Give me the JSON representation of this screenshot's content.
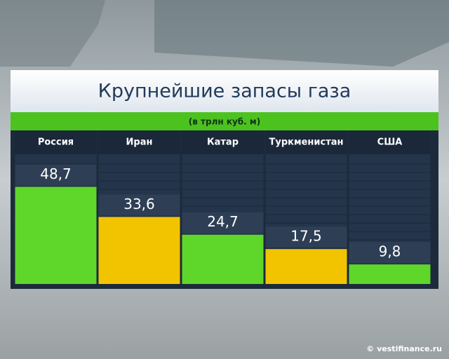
{
  "chart_data": {
    "type": "bar",
    "title": "Крупнейшие запасы газа",
    "subtitle": "(в трлн куб. м)",
    "categories": [
      "Россия",
      "Иран",
      "Катар",
      "Туркменистан",
      "США"
    ],
    "values": [
      48.7,
      33.6,
      24.7,
      17.5,
      9.8
    ],
    "value_labels": [
      "48,7",
      "33,6",
      "24,7",
      "17,5",
      "9,8"
    ],
    "colors": [
      "#5fd62a",
      "#f2c400",
      "#5fd62a",
      "#f2c400",
      "#5fd62a"
    ],
    "ylim": [
      0,
      77
    ],
    "source": "© vestifinance.ru"
  }
}
